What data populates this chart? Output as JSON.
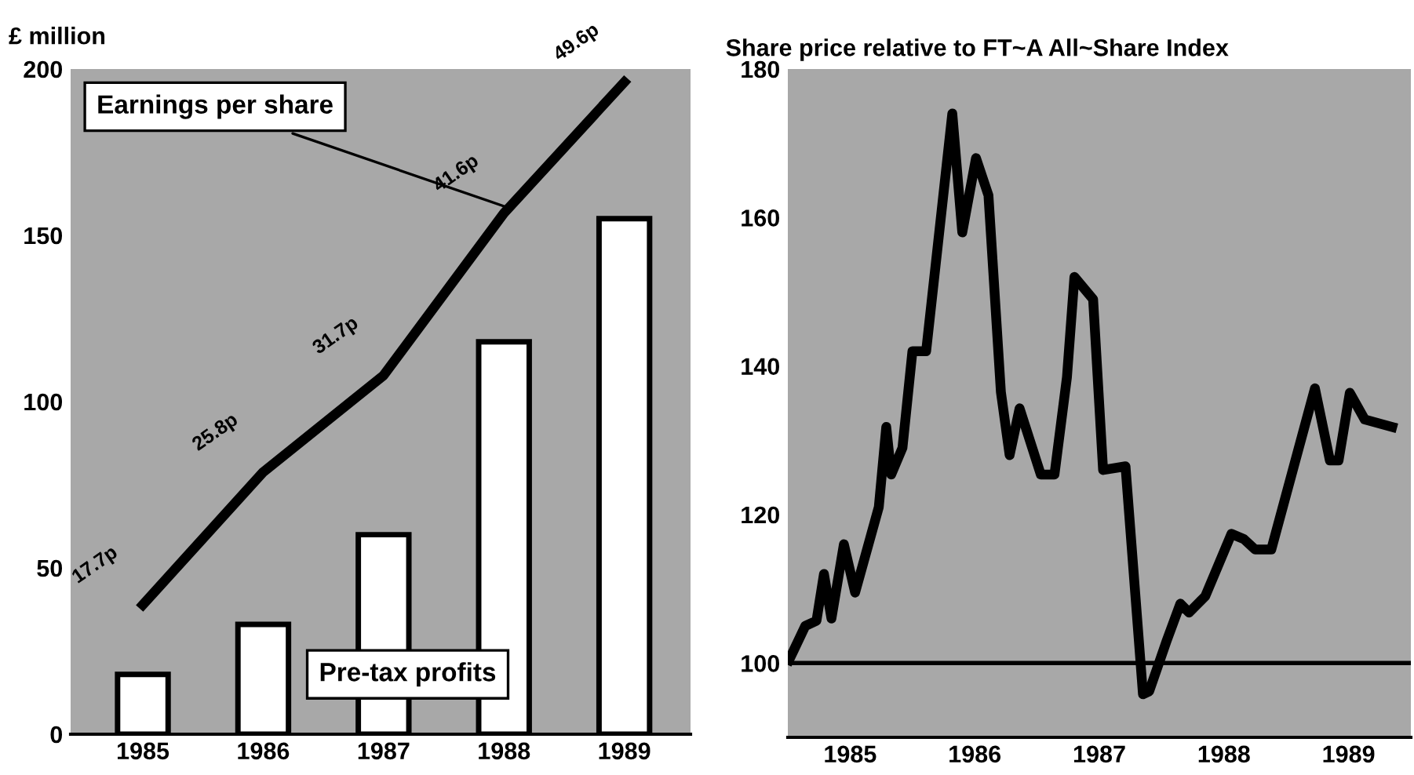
{
  "chart_data": [
    {
      "type": "bar",
      "ylabel": "£ million",
      "categories": [
        "1985",
        "1986",
        "1987",
        "1988",
        "1989"
      ],
      "ylim": [
        0,
        200
      ],
      "yticks": [
        0,
        50,
        100,
        150,
        200
      ],
      "y2lim": [
        9.8,
        50.4
      ],
      "grid": false,
      "legend": false,
      "series": [
        {
          "name": "Pre-tax profits",
          "type": "bar",
          "color": "#ffffff",
          "values": [
            18,
            33,
            60,
            118,
            155
          ]
        },
        {
          "name": "Earnings per share",
          "type": "line",
          "axis": "y2",
          "color": "#000000",
          "values": [
            17.7,
            25.8,
            31.7,
            41.6,
            49.6
          ],
          "value_labels": [
            "17.7p",
            "25.8p",
            "31.7p",
            "41.6p",
            "49.6p"
          ]
        }
      ]
    },
    {
      "type": "line",
      "title": "Share price relative to FT~A All~Share Index",
      "xlim": [
        1985,
        1990
      ],
      "xticks": [
        {
          "value": 1985.5,
          "label": "1985"
        },
        {
          "value": 1986.5,
          "label": "1986"
        },
        {
          "value": 1987.5,
          "label": "1987"
        },
        {
          "value": 1988.5,
          "label": "1988"
        },
        {
          "value": 1989.5,
          "label": "1989"
        }
      ],
      "ylim": [
        90,
        180
      ],
      "yticks": [
        100,
        120,
        140,
        160,
        180
      ],
      "grid": false,
      "legend": false,
      "marker": "none",
      "line_style": "solid",
      "ref_lines": [
        {
          "axis": "y",
          "value": 100,
          "color": "#000000"
        }
      ],
      "series": [
        {
          "color": "#000000",
          "x": [
            1985.01,
            1985.14,
            1985.23,
            1985.29,
            1985.35,
            1985.45,
            1985.54,
            1985.73,
            1985.79,
            1985.83,
            1985.92,
            1986.0,
            1986.11,
            1986.32,
            1986.4,
            1986.51,
            1986.61,
            1986.71,
            1986.78,
            1986.86,
            1987.03,
            1987.14,
            1987.24,
            1987.3,
            1987.45,
            1987.53,
            1987.71,
            1987.85,
            1987.9,
            1988.04,
            1988.15,
            1988.22,
            1988.35,
            1988.56,
            1988.66,
            1988.75,
            1988.88,
            1989.23,
            1989.35,
            1989.42,
            1989.51,
            1989.63,
            1989.85
          ],
          "values": [
            100.4,
            105,
            105.7,
            112,
            106,
            116,
            109.5,
            121,
            131.8,
            125.4,
            129,
            142,
            142,
            174,
            158,
            168,
            163,
            136.5,
            128,
            134.3,
            125.4,
            125.4,
            138.5,
            152,
            149,
            126,
            126.5,
            95.8,
            96.2,
            103,
            108,
            106.8,
            109,
            117.4,
            116.7,
            115.3,
            115.3,
            137,
            127.3,
            127.3,
            136.4,
            132.8,
            131.8
          ]
        }
      ]
    }
  ]
}
